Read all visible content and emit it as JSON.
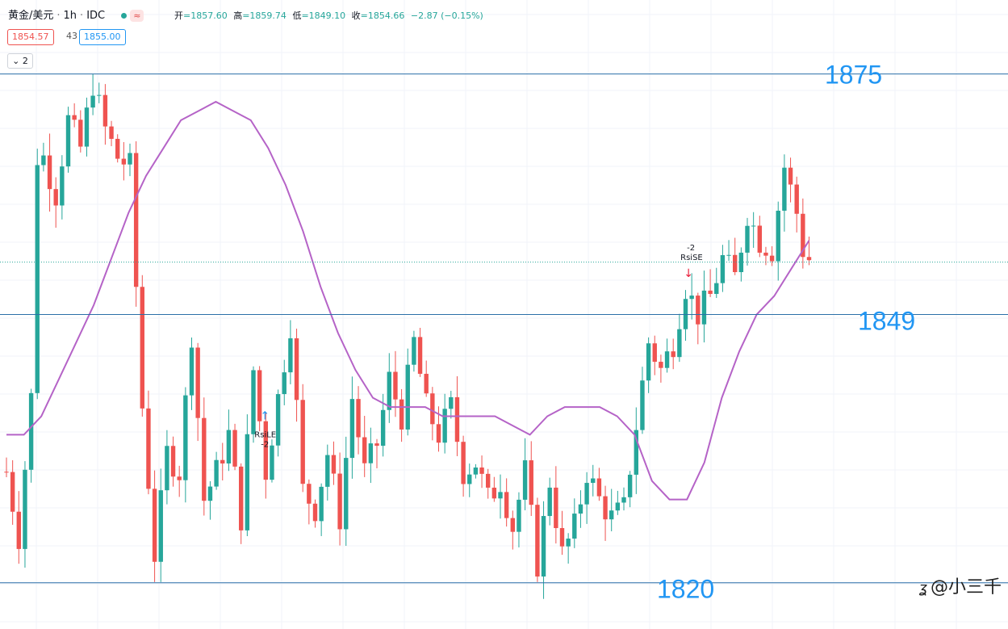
{
  "header": {
    "symbol": "黄金/美元",
    "interval": "1h",
    "exchange": "IDC",
    "open_label": "开",
    "open": "=1857.60",
    "high_label": "高",
    "high": "=1859.74",
    "low_label": "低",
    "low": "=1849.10",
    "close_label": "收",
    "close": "=1854.66",
    "change": "−2.87 (−0.15%)",
    "live_icon": "≈"
  },
  "quote": {
    "bid": "1854.57",
    "spread": "43",
    "ask": "1855.00"
  },
  "indicator_toggle": {
    "chevron_icon": "chevron-down-icon",
    "count": "2"
  },
  "watermark": {
    "logo_icon": "zhihu-logo-icon",
    "text": "@小三千"
  },
  "colors": {
    "up": "#26a69a",
    "down": "#ef5350",
    "ma": "#b563c7",
    "level_line": "#2a6fa8",
    "level_text": "#2196f3"
  },
  "chart_data": {
    "type": "candlestick",
    "ylim": [
      1815,
      1883
    ],
    "grid": true,
    "levels": [
      {
        "value": 1875,
        "label": "1875"
      },
      {
        "value": 1849,
        "label": "1849"
      },
      {
        "value": 1820,
        "label": "1820"
      }
    ],
    "current_price": 1854.66,
    "ma_line": [
      1836,
      1836,
      1838,
      1842,
      1846,
      1850,
      1855,
      1860,
      1864,
      1867,
      1870,
      1871,
      1872,
      1871,
      1870,
      1867,
      1863,
      1858,
      1852,
      1847,
      1843,
      1840,
      1839,
      1839,
      1839,
      1838,
      1838,
      1838,
      1838,
      1837,
      1836,
      1838,
      1839,
      1839,
      1839,
      1838,
      1836,
      1831,
      1829,
      1829,
      1833,
      1840,
      1845,
      1849,
      1851,
      1854,
      1857
    ],
    "key_points": [
      {
        "i": 0,
        "v": 1832
      },
      {
        "i": 2,
        "v": 1825
      },
      {
        "i": 4,
        "v": 1840
      },
      {
        "i": 5,
        "v": 1866
      },
      {
        "i": 6,
        "v": 1866
      },
      {
        "i": 8,
        "v": 1862
      },
      {
        "i": 10,
        "v": 1870
      },
      {
        "i": 12,
        "v": 1867
      },
      {
        "i": 14,
        "v": 1874
      },
      {
        "i": 16,
        "v": 1869
      },
      {
        "i": 18,
        "v": 1866
      },
      {
        "i": 20,
        "v": 1865
      },
      {
        "i": 22,
        "v": 1839
      },
      {
        "i": 24,
        "v": 1823
      },
      {
        "i": 26,
        "v": 1834
      },
      {
        "i": 28,
        "v": 1832
      },
      {
        "i": 30,
        "v": 1847
      },
      {
        "i": 32,
        "v": 1829
      },
      {
        "i": 34,
        "v": 1832
      },
      {
        "i": 36,
        "v": 1836
      },
      {
        "i": 38,
        "v": 1827
      },
      {
        "i": 40,
        "v": 1843
      },
      {
        "i": 42,
        "v": 1832
      },
      {
        "i": 44,
        "v": 1840
      },
      {
        "i": 46,
        "v": 1848
      },
      {
        "i": 48,
        "v": 1830
      },
      {
        "i": 50,
        "v": 1828
      },
      {
        "i": 52,
        "v": 1834
      },
      {
        "i": 54,
        "v": 1827
      },
      {
        "i": 56,
        "v": 1840
      },
      {
        "i": 58,
        "v": 1832
      },
      {
        "i": 60,
        "v": 1835
      },
      {
        "i": 62,
        "v": 1842
      },
      {
        "i": 64,
        "v": 1838
      },
      {
        "i": 66,
        "v": 1846
      },
      {
        "i": 68,
        "v": 1839
      },
      {
        "i": 70,
        "v": 1836
      },
      {
        "i": 72,
        "v": 1839
      },
      {
        "i": 74,
        "v": 1832
      },
      {
        "i": 76,
        "v": 1833
      },
      {
        "i": 78,
        "v": 1829
      },
      {
        "i": 80,
        "v": 1831
      },
      {
        "i": 82,
        "v": 1826
      },
      {
        "i": 84,
        "v": 1832
      },
      {
        "i": 86,
        "v": 1822
      },
      {
        "i": 88,
        "v": 1831
      },
      {
        "i": 90,
        "v": 1823
      },
      {
        "i": 92,
        "v": 1826
      },
      {
        "i": 94,
        "v": 1832
      },
      {
        "i": 96,
        "v": 1829
      },
      {
        "i": 98,
        "v": 1827
      },
      {
        "i": 100,
        "v": 1828
      },
      {
        "i": 102,
        "v": 1837
      },
      {
        "i": 104,
        "v": 1846
      },
      {
        "i": 106,
        "v": 1843
      },
      {
        "i": 108,
        "v": 1846
      },
      {
        "i": 110,
        "v": 1852
      },
      {
        "i": 112,
        "v": 1849
      },
      {
        "i": 114,
        "v": 1851
      },
      {
        "i": 116,
        "v": 1855
      },
      {
        "i": 118,
        "v": 1853
      },
      {
        "i": 120,
        "v": 1860
      },
      {
        "i": 122,
        "v": 1857
      },
      {
        "i": 124,
        "v": 1856
      },
      {
        "i": 126,
        "v": 1865
      },
      {
        "i": 128,
        "v": 1860
      },
      {
        "i": 129,
        "v": 1856
      },
      {
        "i": 130,
        "v": 1855
      }
    ],
    "signals": [
      {
        "type": "long",
        "label": "RsiLE",
        "qty": "-2",
        "i": 42,
        "v": 1838
      },
      {
        "type": "short",
        "label": "RsiSE",
        "qty": "-2",
        "i": 111,
        "v": 1852
      }
    ]
  }
}
